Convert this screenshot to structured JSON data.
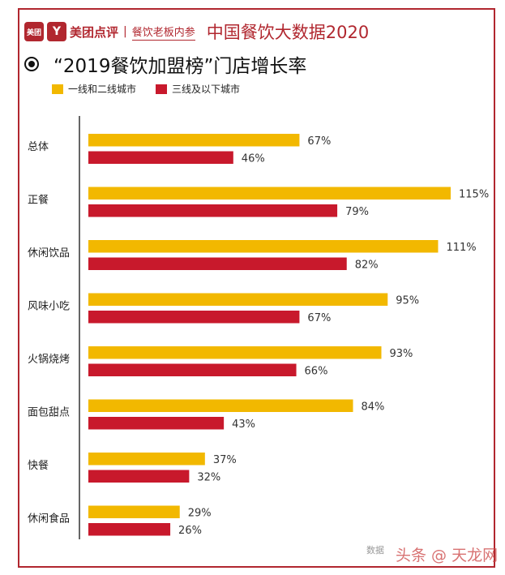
{
  "header": {
    "logo_left": "美团",
    "logo_right": "Y",
    "brand_name": "美团点评",
    "separator": "|",
    "brand_sub": "餐饮老板内参",
    "report_title": "中国餐饮大数据2020"
  },
  "chart_title": "“2019餐饮加盟榜”门店增长率",
  "watermark": {
    "source_text": "数据",
    "overlay_text": "头条 @ 天龙网"
  },
  "colors": {
    "series_a": "#f2b800",
    "series_b": "#c8192c",
    "brand": "#b1272f"
  },
  "chart_data": {
    "type": "bar",
    "orientation": "horizontal",
    "title": "“2019餐饮加盟榜”门店增长率",
    "categories": [
      "总体",
      "正餐",
      "休闲饮品",
      "风味小吃",
      "火锅烧烤",
      "面包甜点",
      "快餐",
      "休闲食品"
    ],
    "series": [
      {
        "name": "一线和二线城市",
        "values": [
          67,
          115,
          111,
          95,
          93,
          84,
          37,
          29
        ],
        "labels": [
          "67%",
          "115%",
          "111%",
          "95%",
          "93%",
          "84%",
          "37%",
          "29%"
        ]
      },
      {
        "name": "三线及以下城市",
        "values": [
          46,
          79,
          82,
          67,
          66,
          43,
          32,
          26
        ],
        "labels": [
          "46%",
          "79%",
          "82%",
          "67%",
          "66%",
          "43%",
          "32%",
          "26%"
        ]
      }
    ],
    "unit": "%",
    "xlim": [
      0,
      115
    ],
    "grid": false,
    "legend": "top-left"
  }
}
